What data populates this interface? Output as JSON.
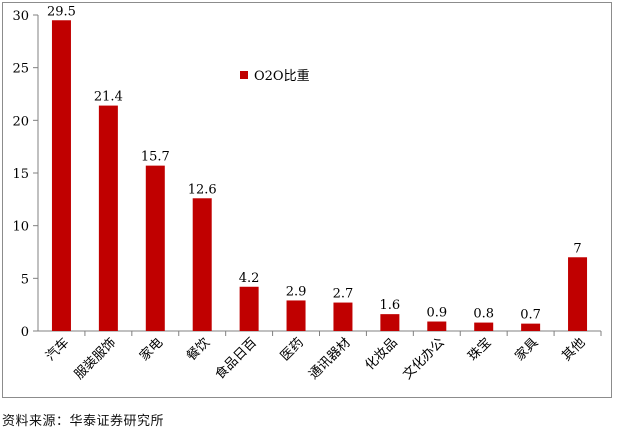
{
  "chart_data": {
    "type": "bar",
    "categories": [
      "汽车",
      "服装服饰",
      "家电",
      "餐饮",
      "食品日百",
      "医药",
      "通讯器材",
      "化妆品",
      "文化办公",
      "珠宝",
      "家具",
      "其他"
    ],
    "series": [
      {
        "name": "O2O比重",
        "values": [
          29.5,
          21.4,
          15.7,
          12.6,
          4.2,
          2.9,
          2.7,
          1.6,
          0.9,
          0.8,
          0.7,
          7
        ],
        "value_labels": [
          "29.5",
          "21.4",
          "15.7",
          "12.6",
          "4.2",
          "2.9",
          "2.7",
          "1.6",
          "0.9",
          "0.8",
          "0.7",
          "7"
        ],
        "color": "#c00000"
      }
    ],
    "ylim": [
      0,
      30
    ],
    "yticks": [
      0,
      5,
      10,
      15,
      20,
      25,
      30
    ],
    "grid": false,
    "legend_position": "top-center",
    "title": "",
    "xlabel": "",
    "ylabel": ""
  },
  "source_note": "资料来源：华泰证券研究所"
}
